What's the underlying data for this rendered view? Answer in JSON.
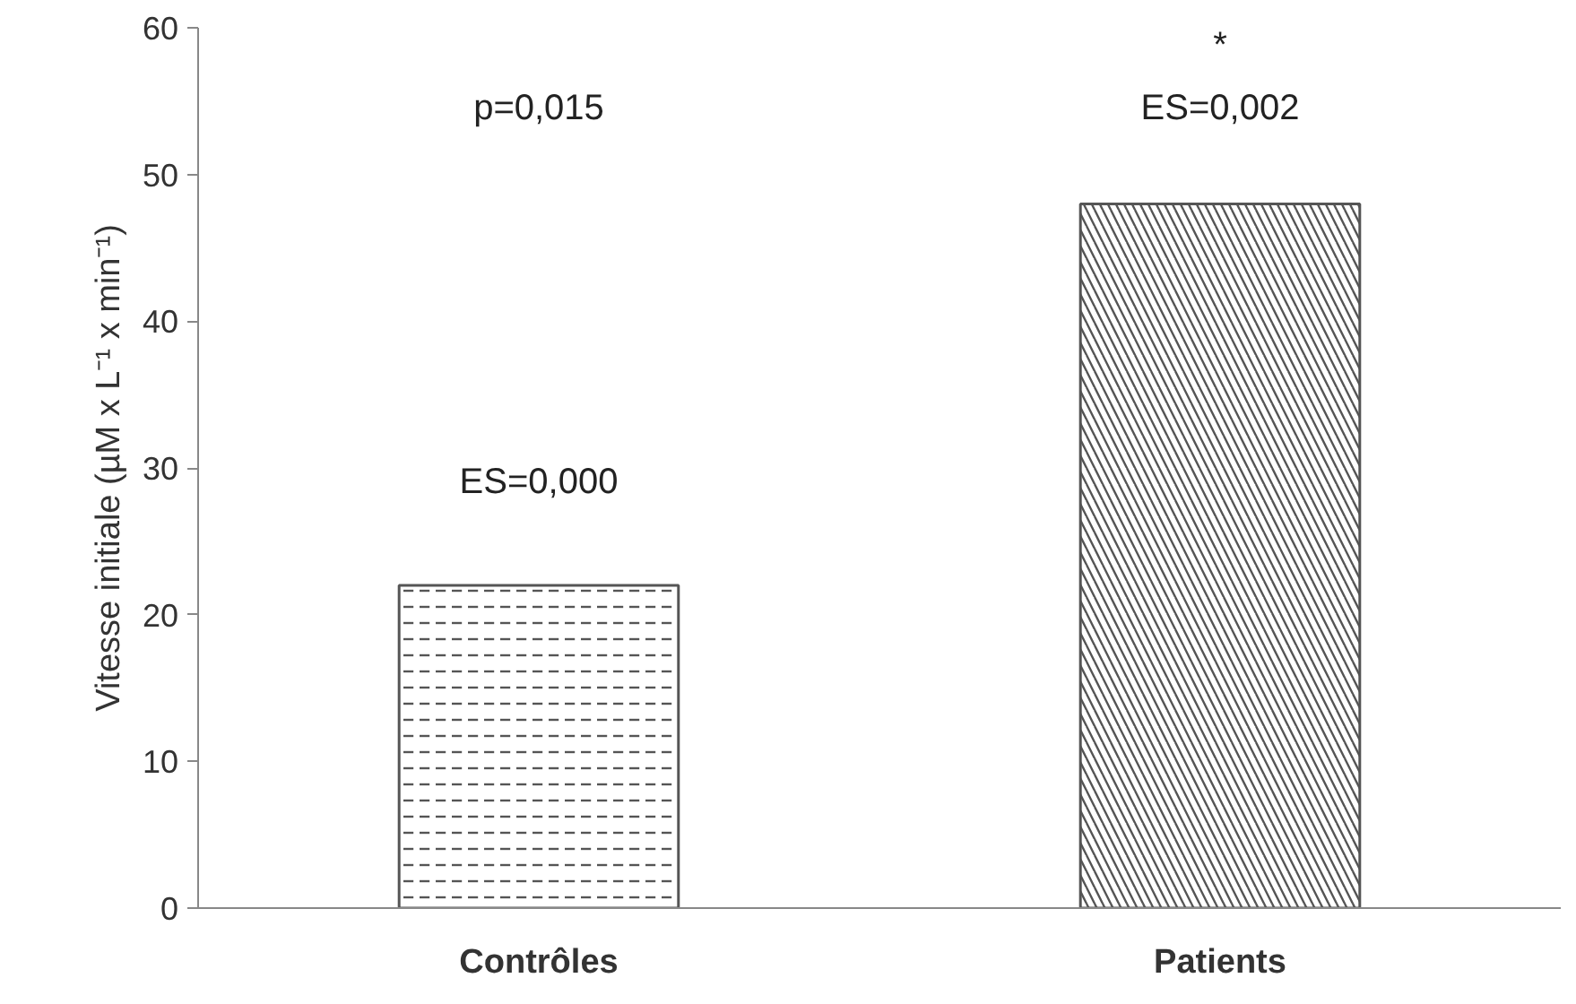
{
  "chart_data": {
    "type": "bar",
    "ylabel": "Vitesse initiale (µM x L⁻¹ x min⁻¹)",
    "categories": [
      "Contrôles",
      "Patients"
    ],
    "values": [
      22,
      48
    ],
    "colors": [
      "#555555",
      "#555555"
    ],
    "ylim": [
      0,
      60
    ],
    "yticks": [
      0,
      10,
      20,
      30,
      40,
      50,
      60
    ],
    "grid": false,
    "annotations": [
      "ES=0,000",
      "ES=0,002",
      "*",
      "p=0,015"
    ]
  }
}
